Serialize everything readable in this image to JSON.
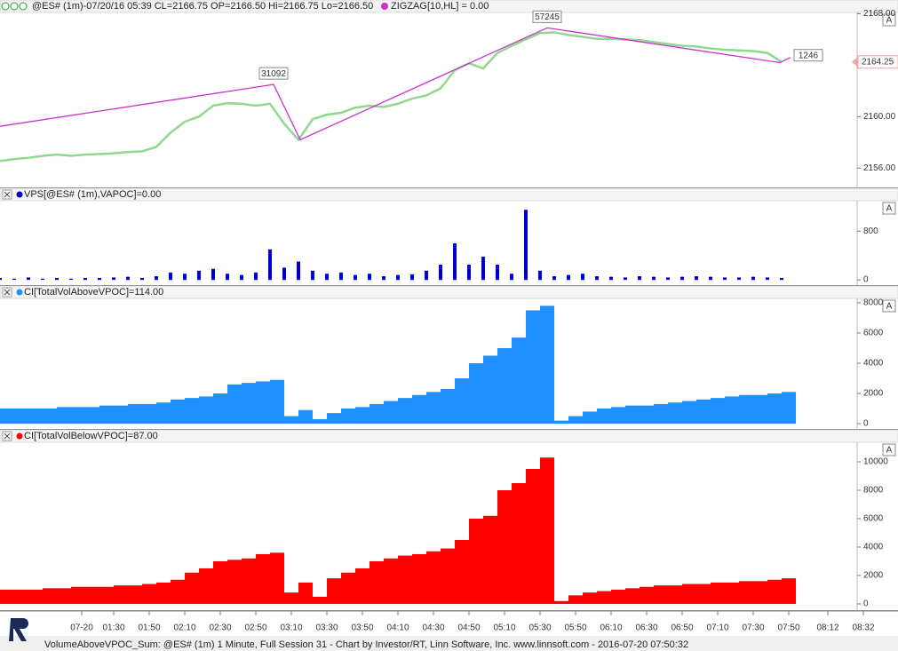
{
  "chart_data": [
    {
      "type": "line",
      "title": "@ES# (1m)-07/20/16 05:39 CL=2166.75 OP=2166.50 Hi=2166.75 Lo=2166.50",
      "x": [
        26,
        34,
        42,
        50,
        58,
        66,
        74,
        82,
        90,
        98,
        106,
        114,
        122,
        130,
        138,
        146,
        154,
        162,
        170,
        178,
        186,
        194,
        202,
        210,
        218,
        226,
        234,
        242,
        250,
        258,
        266,
        274,
        282,
        290,
        298,
        306,
        314,
        322,
        330,
        338,
        346,
        354,
        362,
        370,
        378,
        386,
        394,
        402,
        410,
        418,
        426,
        434,
        442,
        450,
        458,
        466
      ],
      "xlim": [
        26,
        531.5
      ],
      "ylim": [
        2154.5,
        2168.1
      ],
      "yticks": [
        {
          "value": 2156,
          "label": "2156.00"
        },
        {
          "value": 2160,
          "label": "2160.00"
        },
        {
          "value": 2168,
          "label": "2168.00"
        }
      ],
      "last_price": 2164.25,
      "series": [
        {
          "color": "#8fd88f",
          "values": [
            2156.55,
            2156.7,
            2156.8,
            2156.95,
            2157.05,
            2156.95,
            2157.05,
            2157.1,
            2157.15,
            2157.25,
            2157.3,
            2157.65,
            2158.75,
            2159.6,
            2160.0,
            2160.85,
            2161.05,
            2161.0,
            2160.85,
            2161.0,
            2159.45,
            2158.2,
            2159.8,
            2160.15,
            2160.3,
            2160.7,
            2160.85,
            2160.75,
            2161.0,
            2161.4,
            2161.65,
            2162.2,
            2163.6,
            2164.15,
            2163.75,
            2164.95,
            2165.5,
            2166.0,
            2166.5,
            2166.55,
            2166.35,
            2166.2,
            2166.05,
            2166.05,
            2166.0,
            2165.95,
            2165.8,
            2165.65,
            2165.5,
            2165.45,
            2165.3,
            2165.2,
            2165.15,
            2165.1,
            2164.95,
            2164.25
          ]
        },
        {
          "name": "ZIGZAG[10,HL] = 0.00",
          "color": "#cc33cc",
          "x": [
            26,
            180,
            195,
            334,
            465,
            471
          ],
          "values": [
            2159.25,
            2162.5,
            2158.2,
            2166.9,
            2164.2,
            2164.6
          ],
          "vertex_labels": [
            null,
            "31092",
            null,
            "57245",
            null,
            "1246"
          ]
        }
      ]
    },
    {
      "type": "bar",
      "title": "VPS[@ES# (1m),VAPOC]=0.00",
      "color": "#0000cc",
      "x": [
        26,
        34,
        42,
        50,
        58,
        66,
        74,
        82,
        90,
        98,
        106,
        114,
        122,
        130,
        138,
        146,
        154,
        162,
        170,
        178,
        186,
        194,
        202,
        210,
        218,
        226,
        234,
        242,
        250,
        258,
        266,
        274,
        282,
        290,
        298,
        306,
        314,
        322,
        330,
        338,
        346,
        354,
        362,
        370,
        378,
        386,
        394,
        402,
        410,
        418,
        426,
        434,
        442,
        450,
        458,
        466
      ],
      "xlim": [
        26,
        531.5
      ],
      "ylim": [
        -86,
        1300
      ],
      "yticks": [
        0,
        800
      ],
      "values": [
        30,
        20,
        40,
        20,
        30,
        20,
        30,
        30,
        40,
        50,
        30,
        60,
        120,
        100,
        150,
        180,
        100,
        80,
        120,
        500,
        200,
        300,
        150,
        100,
        120,
        80,
        100,
        60,
        80,
        90,
        150,
        250,
        600,
        250,
        380,
        250,
        100,
        1150,
        150,
        60,
        80,
        100,
        60,
        50,
        40,
        60,
        50,
        40,
        50,
        60,
        50,
        40,
        40,
        50,
        40,
        30
      ]
    },
    {
      "type": "bar",
      "title": "CI[TotalVolAboveVPOC]=114.00",
      "color": "#1e90ff",
      "x": [
        26,
        34,
        42,
        50,
        58,
        66,
        74,
        82,
        90,
        98,
        106,
        114,
        122,
        130,
        138,
        146,
        154,
        162,
        170,
        178,
        186,
        194,
        202,
        210,
        218,
        226,
        234,
        242,
        250,
        258,
        266,
        274,
        282,
        290,
        298,
        306,
        314,
        322,
        330,
        338,
        346,
        354,
        362,
        370,
        378,
        386,
        394,
        402,
        410,
        418,
        426,
        434,
        442,
        450,
        458,
        466
      ],
      "xlim": [
        26,
        531.5
      ],
      "ylim": [
        -350,
        8290
      ],
      "yticks": [
        0,
        2000,
        4000,
        6000,
        8000
      ],
      "values": [
        1000,
        1000,
        1000,
        1000,
        1100,
        1100,
        1100,
        1200,
        1200,
        1300,
        1300,
        1400,
        1600,
        1700,
        1800,
        2000,
        2600,
        2700,
        2800,
        2900,
        500,
        900,
        300,
        700,
        1000,
        1100,
        1300,
        1500,
        1700,
        1900,
        2100,
        2300,
        3000,
        4000,
        4500,
        5000,
        5700,
        7500,
        7800,
        200,
        500,
        800,
        1000,
        1100,
        1200,
        1200,
        1300,
        1400,
        1500,
        1600,
        1700,
        1800,
        1900,
        1900,
        2000,
        2100
      ]
    },
    {
      "type": "bar",
      "title": "CI[TotalVolBelowVPOC]=87.00",
      "color": "#ff0000",
      "x": [
        26,
        34,
        42,
        50,
        58,
        66,
        74,
        82,
        90,
        98,
        106,
        114,
        122,
        130,
        138,
        146,
        154,
        162,
        170,
        178,
        186,
        194,
        202,
        210,
        218,
        226,
        234,
        242,
        250,
        258,
        266,
        274,
        282,
        290,
        298,
        306,
        314,
        322,
        330,
        338,
        346,
        354,
        362,
        370,
        378,
        386,
        394,
        402,
        410,
        418,
        426,
        434,
        442,
        450,
        458,
        466
      ],
      "xlim": [
        26,
        531.5
      ],
      "ylim": [
        -440,
        11375
      ],
      "yticks": [
        0,
        2000,
        4000,
        6000,
        8000,
        10000
      ],
      "xticks": [
        {
          "value": 72,
          "label": "07-20"
        },
        {
          "value": 90,
          "label": "01:30"
        },
        {
          "value": 110,
          "label": "01:50"
        },
        {
          "value": 130,
          "label": "02:10"
        },
        {
          "value": 150,
          "label": "02:30"
        },
        {
          "value": 170,
          "label": "02:50"
        },
        {
          "value": 190,
          "label": "03:10"
        },
        {
          "value": 210,
          "label": "03:30"
        },
        {
          "value": 230,
          "label": "03:50"
        },
        {
          "value": 250,
          "label": "04:10"
        },
        {
          "value": 270,
          "label": "04:30"
        },
        {
          "value": 290,
          "label": "04:50"
        },
        {
          "value": 310,
          "label": "05:10"
        },
        {
          "value": 330,
          "label": "05:30"
        },
        {
          "value": 350,
          "label": "05:50"
        },
        {
          "value": 370,
          "label": "06:10"
        },
        {
          "value": 390,
          "label": "06:30"
        },
        {
          "value": 410,
          "label": "06:50"
        },
        {
          "value": 430,
          "label": "07:10"
        },
        {
          "value": 450,
          "label": "07:30"
        },
        {
          "value": 470,
          "label": "07:50"
        },
        {
          "value": 492,
          "label": "08:12"
        },
        {
          "value": 512,
          "label": "08:32"
        }
      ],
      "values": [
        1000,
        1000,
        1000,
        1100,
        1100,
        1200,
        1200,
        1200,
        1300,
        1300,
        1400,
        1500,
        1700,
        2200,
        2500,
        3000,
        3100,
        3200,
        3500,
        3600,
        800,
        1500,
        500,
        1800,
        2200,
        2500,
        3000,
        3200,
        3400,
        3500,
        3700,
        3900,
        4500,
        6000,
        6200,
        8000,
        8500,
        9500,
        10300,
        200,
        600,
        800,
        900,
        1000,
        1100,
        1200,
        1300,
        1300,
        1400,
        1400,
        1500,
        1500,
        1600,
        1600,
        1700,
        1800
      ]
    }
  ],
  "pane_button_label": "A",
  "footer": "VolumeAboveVPOC_Sum: @ES# (1m) 1 Minute, Full Session 31 - Chart by Investor/RT, Linn Software, Inc. www.linnsoft.com - 2016-07-20 07:50:32"
}
